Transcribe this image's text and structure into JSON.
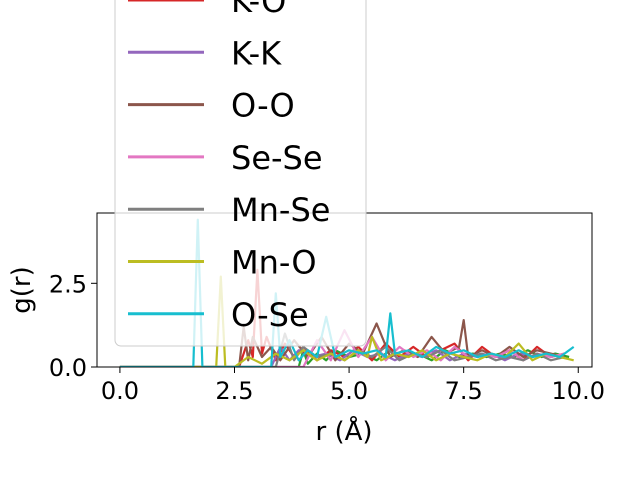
{
  "chart_data": {
    "type": "line",
    "title": "",
    "xlabel": "r (Å)",
    "ylabel": "g(r)",
    "xlim": [
      -0.5,
      10.3
    ],
    "ylim": [
      0,
      4.6
    ],
    "xticks": [
      "0.0",
      "2.5",
      "5.0",
      "7.5",
      "10.0"
    ],
    "xtick_values": [
      0,
      2.5,
      5,
      7.5,
      10
    ],
    "yticks": [
      "0.0",
      "2.5"
    ],
    "ytick_values": [
      0,
      2.5
    ],
    "grid": false,
    "legend_placement": "upper-left",
    "legend": [
      {
        "name": "K-O",
        "color": "#d62728"
      },
      {
        "name": "K-K",
        "color": "#9467bd"
      },
      {
        "name": "O-O",
        "color": "#8c564b"
      },
      {
        "name": "Se-Se",
        "color": "#e377c2"
      },
      {
        "name": "Mn-Se",
        "color": "#7f7f7f"
      },
      {
        "name": "Mn-O",
        "color": "#bcbd22"
      },
      {
        "name": "O-Se",
        "color": "#17becf"
      }
    ],
    "series": [
      {
        "name": "",
        "color": "#2ca02c",
        "x": [
          0,
          1.0,
          2.0,
          3.0,
          3.9,
          4.0,
          4.1,
          4.3,
          4.5,
          4.7,
          5.0,
          5.3,
          5.6,
          5.9,
          6.2,
          6.5,
          6.8,
          7.1,
          7.4,
          7.7,
          8.0,
          8.3,
          8.6,
          8.9,
          9.2,
          9.5,
          9.8
        ],
        "y": [
          0,
          0,
          0,
          0,
          0,
          0.5,
          0.1,
          0.4,
          0.2,
          0.5,
          0.3,
          0.4,
          0.2,
          0.5,
          0.3,
          0.4,
          0.2,
          0.5,
          0.3,
          0.4,
          0.3,
          0.4,
          0.3,
          0.5,
          0.3,
          0.4,
          0.3
        ]
      },
      {
        "name": "K-O",
        "color": "#d62728",
        "x": [
          0,
          2.6,
          2.8,
          2.9,
          3.0,
          3.1,
          3.2,
          3.4,
          3.6,
          3.8,
          4.0,
          4.3,
          4.6,
          4.9,
          5.2,
          5.5,
          5.8,
          6.1,
          6.4,
          6.7,
          7.0,
          7.3,
          7.6,
          7.9,
          8.2,
          8.5,
          8.8,
          9.1,
          9.4,
          9.7
        ],
        "y": [
          0,
          0,
          0.8,
          0.3,
          2.9,
          0.4,
          0.9,
          0.2,
          0.7,
          0.3,
          0.6,
          0.2,
          0.5,
          0.3,
          0.6,
          0.2,
          0.7,
          0.3,
          0.6,
          0.3,
          0.5,
          0.7,
          0.2,
          0.6,
          0.3,
          0.5,
          0.2,
          0.6,
          0.3,
          0.4
        ]
      },
      {
        "name": "K-K",
        "color": "#9467bd",
        "x": [
          0,
          3.3,
          3.5,
          3.7,
          3.9,
          4.2,
          4.5,
          4.8,
          5.1,
          5.4,
          5.7,
          6.0,
          6.3,
          6.6,
          6.9,
          7.2,
          7.5,
          7.8,
          8.1,
          8.4,
          8.7,
          9.0,
          9.3,
          9.6
        ],
        "y": [
          0,
          0,
          0.6,
          0.2,
          0.5,
          0.3,
          0.4,
          0.2,
          0.5,
          0.3,
          0.4,
          0.2,
          0.4,
          0.3,
          0.5,
          0.2,
          0.4,
          0.3,
          0.4,
          0.2,
          0.4,
          0.3,
          0.4,
          0.3
        ]
      },
      {
        "name": "O-O",
        "color": "#8c564b",
        "x": [
          0,
          2.6,
          2.7,
          2.8,
          2.9,
          3.1,
          3.3,
          3.5,
          3.8,
          4.1,
          4.4,
          4.7,
          5.0,
          5.3,
          5.6,
          5.9,
          6.2,
          6.5,
          6.8,
          7.1,
          7.4,
          7.5,
          7.6,
          7.9,
          8.2,
          8.5,
          8.8,
          9.1,
          9.4,
          9.7
        ],
        "y": [
          0,
          0,
          1.2,
          0.2,
          0.9,
          0.3,
          0.6,
          0.2,
          0.8,
          0.3,
          0.9,
          0.2,
          0.7,
          0.4,
          1.3,
          0.3,
          0.5,
          0.3,
          0.9,
          0.4,
          0.6,
          1.4,
          0.3,
          0.5,
          0.3,
          0.6,
          0.3,
          0.5,
          0.4,
          0.3
        ]
      },
      {
        "name": "Se-Se",
        "color": "#e377c2",
        "x": [
          0,
          4.0,
          4.3,
          4.6,
          4.9,
          5.2,
          5.5,
          5.8,
          6.1,
          6.4,
          6.7,
          7.0,
          7.3,
          7.6,
          7.9,
          8.2,
          8.5,
          8.8,
          9.1,
          9.4,
          9.7
        ],
        "y": [
          0,
          0,
          0.8,
          0.2,
          1.1,
          0.3,
          0.9,
          0.2,
          0.6,
          0.3,
          0.5,
          0.2,
          0.6,
          0.3,
          0.4,
          0.3,
          0.5,
          0.2,
          0.4,
          0.3,
          0.4
        ]
      },
      {
        "name": "Mn-Se",
        "color": "#7f7f7f",
        "x": [
          0,
          3.4,
          3.6,
          3.8,
          4.0,
          4.3,
          4.6,
          4.9,
          5.2,
          5.5,
          5.8,
          6.1,
          6.4,
          6.7,
          7.0,
          7.3,
          7.6,
          7.9,
          8.2,
          8.5,
          8.8,
          9.1,
          9.4,
          9.7
        ],
        "y": [
          0,
          0,
          1.0,
          0.2,
          0.6,
          0.3,
          0.4,
          0.2,
          0.5,
          0.3,
          0.6,
          0.2,
          0.4,
          0.3,
          0.5,
          0.2,
          0.3,
          0.4,
          0.2,
          0.3,
          0.2,
          0.4,
          0.2,
          0.3
        ]
      },
      {
        "name": "Mn-O",
        "color": "#bcbd22",
        "x": [
          0,
          2.0,
          2.1,
          2.2,
          2.3,
          2.5,
          2.8,
          3.1,
          3.4,
          3.7,
          4.0,
          4.3,
          4.6,
          4.9,
          5.2,
          5.4,
          5.5,
          5.7,
          6.0,
          6.3,
          6.6,
          6.9,
          7.2,
          7.5,
          7.8,
          8.1,
          8.4,
          8.7,
          9.0,
          9.3,
          9.6,
          9.9
        ],
        "y": [
          0,
          0,
          0,
          2.7,
          0,
          0,
          0.3,
          0.1,
          0.4,
          0.2,
          0.5,
          0.2,
          0.4,
          0.2,
          0.5,
          0.3,
          0.9,
          0.2,
          0.4,
          0.3,
          0.5,
          0.2,
          0.4,
          0.3,
          0.2,
          0.4,
          0.3,
          0.7,
          0.2,
          0.4,
          0.3,
          0.2
        ]
      },
      {
        "name": "O-Se",
        "color": "#17becf",
        "x": [
          0,
          1.6,
          1.7,
          1.8,
          2.0,
          2.5,
          3.0,
          3.3,
          3.4,
          3.5,
          3.7,
          3.9,
          4.1,
          4.3,
          4.5,
          4.7,
          5.0,
          5.3,
          5.6,
          5.8,
          5.9,
          6.0,
          6.3,
          6.6,
          6.9,
          7.2,
          7.5,
          7.8,
          8.1,
          8.4,
          8.7,
          9.0,
          9.3,
          9.6,
          9.9
        ],
        "y": [
          0,
          0,
          4.4,
          0,
          0,
          0,
          0,
          0,
          2.2,
          0.3,
          0.8,
          0.2,
          0.5,
          0.3,
          1.5,
          0.3,
          0.5,
          0.4,
          0.5,
          0.3,
          1.6,
          0.4,
          0.5,
          0.3,
          0.6,
          0.4,
          0.5,
          0.3,
          0.4,
          0.3,
          0.5,
          0.3,
          0.4,
          0.3,
          0.6
        ]
      }
    ]
  }
}
